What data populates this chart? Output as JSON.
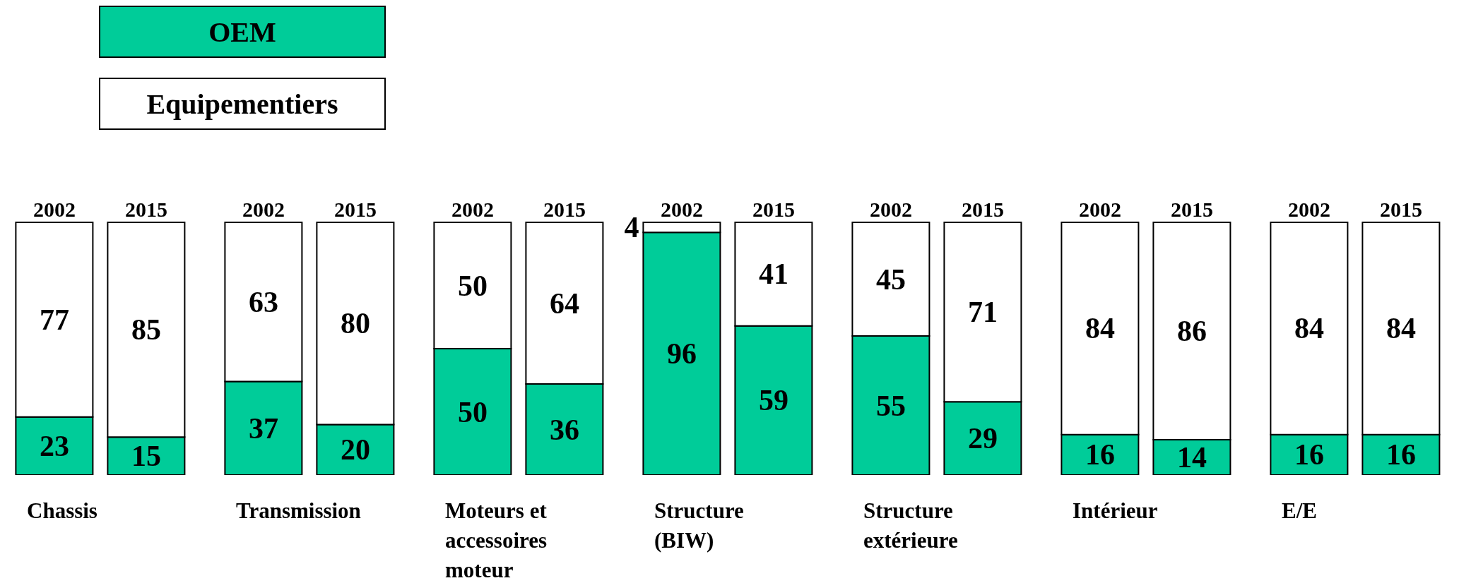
{
  "chart_data": {
    "type": "bar",
    "stacked": true,
    "data_labels": true,
    "legend": "top left",
    "categories": [
      "2002",
      "2015",
      "2002",
      "2015",
      "2002",
      "2015",
      "2002",
      "2015",
      "2002",
      "2015",
      "2002",
      "2015",
      "2002",
      "2015"
    ],
    "series": [
      {
        "name": "OEM",
        "color": "#00cc99",
        "values": [
          23,
          15,
          37,
          20,
          50,
          36,
          96,
          59,
          55,
          29,
          16,
          14,
          16,
          16
        ]
      },
      {
        "name": "Equipementiers",
        "color": "#ffffff",
        "values": [
          77,
          85,
          63,
          80,
          50,
          64,
          4,
          41,
          45,
          71,
          84,
          86,
          84,
          84
        ]
      }
    ],
    "annotations": [
      "Chassis",
      "Transmission",
      "Moteurs et accessoires moteur",
      "Structure (BIW)",
      "Structure extérieure",
      "Intérieur",
      "E/E"
    ]
  }
}
